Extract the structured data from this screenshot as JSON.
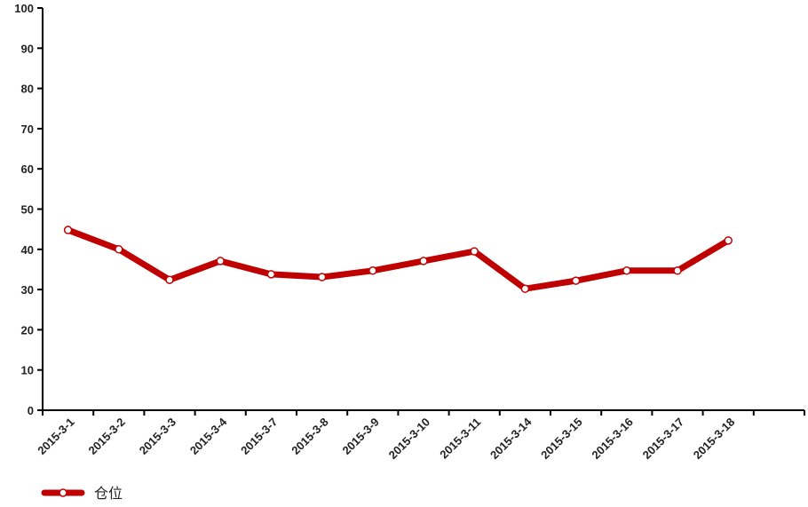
{
  "chart_data": {
    "type": "line",
    "categories": [
      "2015-3-1",
      "2015-3-2",
      "2015-3-3",
      "2015-3-4",
      "2015-3-7",
      "2015-3-8",
      "2015-3-9",
      "2015-3-10",
      "2015-3-11",
      "2015-3-14",
      "2015-3-15",
      "2015-3-16",
      "2015-3-17",
      "2015-3-18",
      null
    ],
    "series": [
      {
        "name": "仓位",
        "color": "#c00000",
        "values": [
          44.8,
          40,
          32.4,
          37.1,
          33.8,
          33.1,
          34.7,
          37.1,
          39.5,
          30.2,
          32.2,
          34.7,
          34.7,
          42.2,
          null
        ]
      }
    ],
    "ylim": [
      0,
      100
    ],
    "yticks": [
      0,
      10,
      20,
      30,
      40,
      50,
      60,
      70,
      80,
      90,
      100
    ],
    "grid": false,
    "legend": "bottom-left"
  }
}
